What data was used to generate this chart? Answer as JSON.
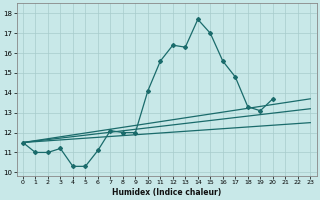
{
  "xlabel": "Humidex (Indice chaleur)",
  "xlim": [
    -0.5,
    23.5
  ],
  "ylim": [
    9.8,
    18.5
  ],
  "xticks": [
    0,
    1,
    2,
    3,
    4,
    5,
    6,
    7,
    8,
    9,
    10,
    11,
    12,
    13,
    14,
    15,
    16,
    17,
    18,
    19,
    20,
    21,
    22,
    23
  ],
  "yticks": [
    10,
    11,
    12,
    13,
    14,
    15,
    16,
    17,
    18
  ],
  "bg_color": "#c8e8e8",
  "grid_color": "#a8cccc",
  "line_color": "#1a6b6b",
  "line1_x": [
    0,
    1,
    2,
    3,
    4,
    5,
    6,
    7,
    8,
    9,
    10,
    11,
    12,
    13,
    14,
    15,
    16,
    17,
    18,
    19,
    20,
    21,
    22,
    23
  ],
  "line1_y": [
    11.5,
    11.0,
    11.0,
    11.2,
    10.3,
    10.3,
    11.1,
    12.1,
    12.0,
    12.0,
    14.1,
    15.6,
    16.4,
    16.3,
    17.7,
    17.0,
    15.6,
    14.8,
    13.3,
    13.1,
    13.7,
    13.7,
    13.7,
    13.7
  ],
  "line1_end": 20,
  "line2_x": [
    0,
    23
  ],
  "line2_y": [
    11.5,
    13.7
  ],
  "line3_x": [
    0,
    23
  ],
  "line3_y": [
    11.5,
    13.2
  ],
  "line4_x": [
    0,
    23
  ],
  "line4_y": [
    11.5,
    12.5
  ]
}
